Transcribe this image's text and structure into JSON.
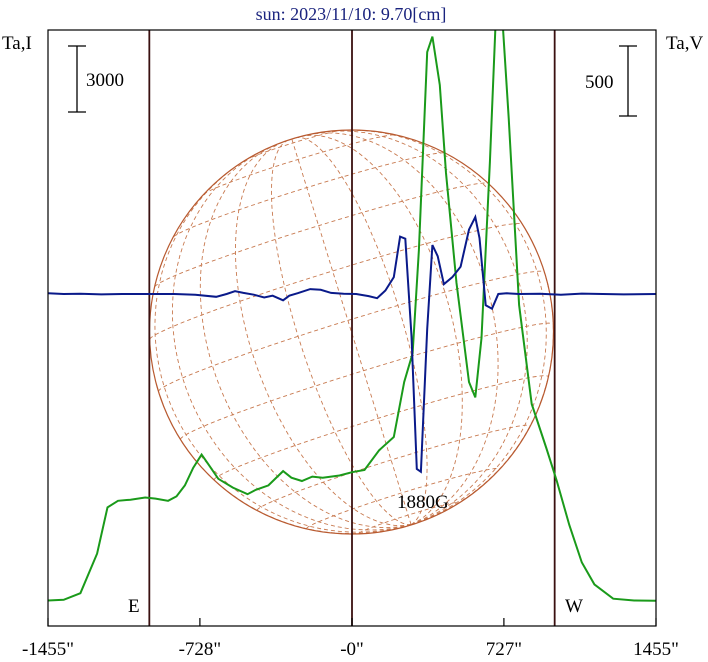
{
  "title": "sun: 2023/11/10: 9.70[cm]",
  "left_axis_label": "Ta,I",
  "right_axis_label": "Ta,V",
  "scale_bar_left_label": "3000",
  "scale_bar_right_label": "500",
  "field_annotation": "1880G",
  "east_label": "E",
  "west_label": "W",
  "colors": {
    "title": "#1a237e",
    "stokes_i": "#1a9a1a",
    "stokes_v": "#0a1a8a",
    "disk": "#b85a30",
    "grid": "#c87a50",
    "limb_lines": "#3a1010",
    "frame": "#000000"
  },
  "chart_data": {
    "type": "line",
    "title": "sun: 2023/11/10: 9.70[cm]",
    "xlabel": "",
    "xlim": [
      -1455,
      1455
    ],
    "x_ticks": [
      -1455,
      -728,
      0,
      727,
      1455
    ],
    "x_tick_labels": [
      "-1455\"",
      "-728\"",
      "-0\"",
      "727\"",
      "1455\""
    ],
    "vertical_markers": [
      -970,
      0,
      970
    ],
    "series": [
      {
        "key": "I",
        "axis": "left",
        "scale_bar_value": 3000,
        "points": [
          [
            -1455,
            70
          ],
          [
            -1380,
            100
          ],
          [
            -1300,
            400
          ],
          [
            -1220,
            2200
          ],
          [
            -1170,
            4300
          ],
          [
            -1120,
            4600
          ],
          [
            -1060,
            4650
          ],
          [
            -990,
            4750
          ],
          [
            -940,
            4700
          ],
          [
            -880,
            4600
          ],
          [
            -840,
            4800
          ],
          [
            -800,
            5300
          ],
          [
            -760,
            6100
          ],
          [
            -720,
            6700
          ],
          [
            -690,
            6300
          ],
          [
            -640,
            5600
          ],
          [
            -570,
            5200
          ],
          [
            -500,
            4900
          ],
          [
            -460,
            5100
          ],
          [
            -400,
            5300
          ],
          [
            -330,
            5950
          ],
          [
            -290,
            5650
          ],
          [
            -240,
            5500
          ],
          [
            -190,
            5700
          ],
          [
            -140,
            5650
          ],
          [
            -60,
            5750
          ],
          [
            0,
            5900
          ],
          [
            60,
            6000
          ],
          [
            130,
            6900
          ],
          [
            200,
            7500
          ],
          [
            250,
            10000
          ],
          [
            290,
            11300
          ],
          [
            320,
            16000
          ],
          [
            360,
            25000
          ],
          [
            385,
            25700
          ],
          [
            420,
            23500
          ],
          [
            450,
            19500
          ],
          [
            500,
            14500
          ],
          [
            560,
            10000
          ],
          [
            590,
            9300
          ],
          [
            620,
            12000
          ],
          [
            660,
            20000
          ],
          [
            690,
            27000
          ],
          [
            710,
            28000
          ],
          [
            750,
            22000
          ],
          [
            800,
            13500
          ],
          [
            860,
            9000
          ],
          [
            930,
            7000
          ],
          [
            980,
            5500
          ],
          [
            1040,
            3500
          ],
          [
            1100,
            1800
          ],
          [
            1160,
            800
          ],
          [
            1250,
            150
          ],
          [
            1350,
            70
          ],
          [
            1455,
            60
          ]
        ]
      },
      {
        "key": "V",
        "axis": "right",
        "scale_bar_value": 500,
        "points": [
          [
            -1455,
            5
          ],
          [
            -1380,
            0
          ],
          [
            -1300,
            2
          ],
          [
            -1200,
            -3
          ],
          [
            -1100,
            0
          ],
          [
            -970,
            0
          ],
          [
            -850,
            0
          ],
          [
            -750,
            -5
          ],
          [
            -650,
            -20
          ],
          [
            -600,
            0
          ],
          [
            -560,
            20
          ],
          [
            -520,
            8
          ],
          [
            -470,
            -5
          ],
          [
            -420,
            -25
          ],
          [
            -380,
            -12
          ],
          [
            -330,
            -45
          ],
          [
            -300,
            -12
          ],
          [
            -260,
            6
          ],
          [
            -200,
            35
          ],
          [
            -150,
            30
          ],
          [
            -100,
            8
          ],
          [
            -40,
            2
          ],
          [
            20,
            0
          ],
          [
            80,
            -15
          ],
          [
            120,
            -30
          ],
          [
            160,
            25
          ],
          [
            200,
            120
          ],
          [
            230,
            410
          ],
          [
            255,
            395
          ],
          [
            285,
            -300
          ],
          [
            310,
            -1250
          ],
          [
            330,
            -1270
          ],
          [
            360,
            -250
          ],
          [
            385,
            350
          ],
          [
            410,
            270
          ],
          [
            440,
            70
          ],
          [
            480,
            120
          ],
          [
            520,
            195
          ],
          [
            560,
            460
          ],
          [
            590,
            550
          ],
          [
            610,
            400
          ],
          [
            640,
            -80
          ],
          [
            670,
            -105
          ],
          [
            700,
            0
          ],
          [
            740,
            5
          ],
          [
            800,
            0
          ],
          [
            900,
            2
          ],
          [
            1000,
            -5
          ],
          [
            1100,
            3
          ],
          [
            1200,
            0
          ],
          [
            1300,
            -3
          ],
          [
            1455,
            0
          ]
        ]
      }
    ]
  }
}
